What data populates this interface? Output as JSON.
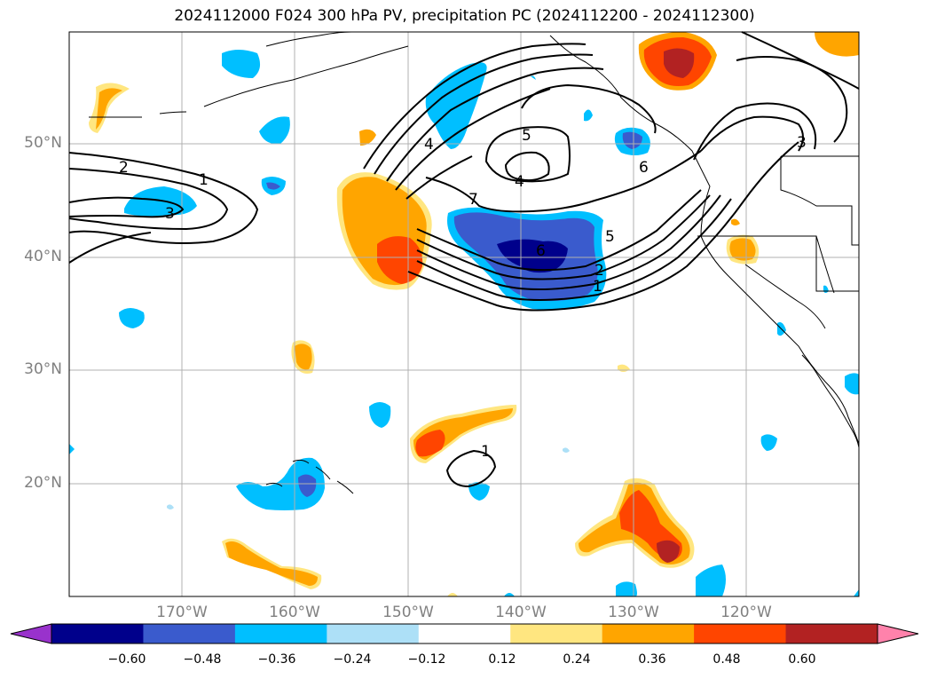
{
  "title": "2024112000 F024 300 hPa PV, precipitation PC (2024112200 - 2024112300)",
  "lat_labels": [
    "50°N",
    "40°N",
    "30°N",
    "20°N"
  ],
  "lon_labels": [
    "170°W",
    "160°W",
    "150°W",
    "140°W",
    "130°W",
    "120°W"
  ],
  "colorbar": {
    "ticks": [
      "−0.60",
      "−0.48",
      "−0.36",
      "−0.24",
      "−0.12",
      "0.12",
      "0.24",
      "0.36",
      "0.48",
      "0.60"
    ],
    "colors": [
      "#9932CC",
      "#00008B",
      "#3A5BCD",
      "#00BFFF",
      "#ADE0F7",
      "#FFFFFF",
      "#FFE680",
      "#FFA500",
      "#FF4500",
      "#B22222",
      "#FF82AB"
    ]
  },
  "contour_labels": [
    "2",
    "1",
    "3",
    "4",
    "5",
    "4",
    "7",
    "6",
    "5",
    "2",
    "1",
    "6",
    "3",
    "1"
  ],
  "colors": {
    "coast": "#000000",
    "grid": "#b0b0b0"
  }
}
